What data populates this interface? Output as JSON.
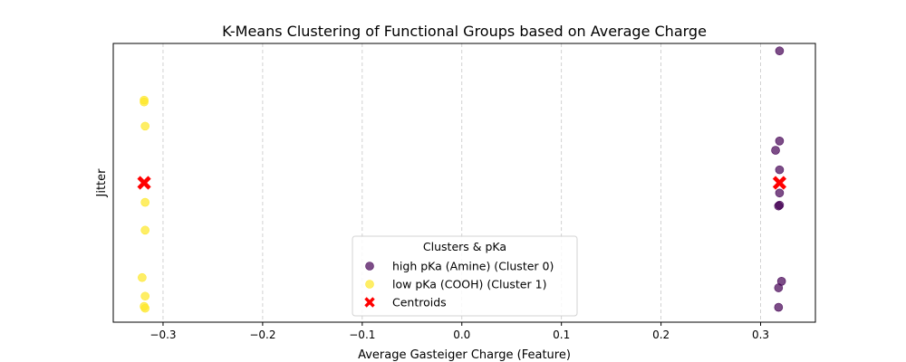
{
  "chart_data": {
    "type": "scatter",
    "title": "K-Means Clustering of Functional Groups based on Average Charge",
    "xlabel": "Average Gasteiger Charge (Feature)",
    "ylabel": "Jitter",
    "xlim": [
      -0.35,
      0.355
    ],
    "ylim": [
      -0.15,
      0.15
    ],
    "xticks": [
      -0.3,
      -0.2,
      -0.1,
      0.0,
      0.1,
      0.2,
      0.3
    ],
    "xtick_labels": [
      "−0.3",
      "−0.2",
      "−0.1",
      "0.0",
      "0.1",
      "0.2",
      "0.3"
    ],
    "grid": "x-axis, dashed",
    "legend": {
      "title": "Clusters & pKa",
      "placement": "lower-center"
    },
    "series": [
      {
        "name": "high pKa (Amine) (Cluster 0)",
        "color": "#440154",
        "marker": "circle",
        "points": [
          {
            "x": 0.319,
            "y": 0.142
          },
          {
            "x": 0.319,
            "y": 0.045
          },
          {
            "x": 0.315,
            "y": 0.035
          },
          {
            "x": 0.319,
            "y": 0.014
          },
          {
            "x": 0.319,
            "y": -0.011
          },
          {
            "x": 0.319,
            "y": -0.024
          },
          {
            "x": 0.318,
            "y": -0.025
          },
          {
            "x": 0.321,
            "y": -0.106
          },
          {
            "x": 0.318,
            "y": -0.113
          },
          {
            "x": 0.318,
            "y": -0.134
          }
        ]
      },
      {
        "name": "low pKa (COOH) (Cluster 1)",
        "color": "#fde725",
        "marker": "circle",
        "points": [
          {
            "x": -0.319,
            "y": 0.089
          },
          {
            "x": -0.319,
            "y": 0.087
          },
          {
            "x": -0.318,
            "y": 0.061
          },
          {
            "x": -0.318,
            "y": -0.021
          },
          {
            "x": -0.318,
            "y": -0.051
          },
          {
            "x": -0.321,
            "y": -0.102
          },
          {
            "x": -0.318,
            "y": -0.122
          },
          {
            "x": -0.319,
            "y": -0.133
          },
          {
            "x": -0.318,
            "y": -0.135
          }
        ]
      },
      {
        "name": "Centroids",
        "color": "#ff0000",
        "marker": "x",
        "points": [
          {
            "x": -0.319,
            "y": 0.0
          },
          {
            "x": 0.319,
            "y": 0.0
          }
        ]
      }
    ]
  }
}
